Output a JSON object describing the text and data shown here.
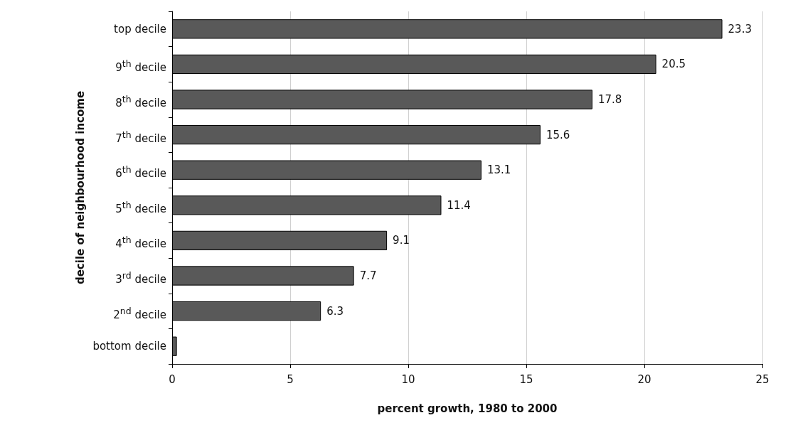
{
  "chart_data": {
    "type": "bar",
    "orientation": "horizontal",
    "xlabel": "percent growth, 1980 to 2000",
    "ylabel": "decile of neighbourhood income",
    "categories": [
      "top decile",
      "9$^{th}$ decile",
      "8$^{th}$ decile",
      "7$^{th}$ decile",
      "6$^{th}$ decile",
      "5$^{th}$ decile",
      "4$^{th}$ decile",
      "3$^{rd}$ decile",
      "2$^{nd}$ decile",
      "bottom decile"
    ],
    "values": [
      23.3,
      20.5,
      17.8,
      15.6,
      13.1,
      11.4,
      9.1,
      7.7,
      6.3,
      0.2
    ],
    "value_labels": [
      "23.3",
      "20.5",
      "17.8",
      "15.6",
      "13.1",
      "11.4",
      "9.1",
      "7.7",
      "6.3",
      null
    ],
    "color": "#595959",
    "xlim": [
      0,
      25
    ],
    "xticks": [
      0,
      5,
      10,
      15,
      20,
      25
    ],
    "grid": "x"
  }
}
